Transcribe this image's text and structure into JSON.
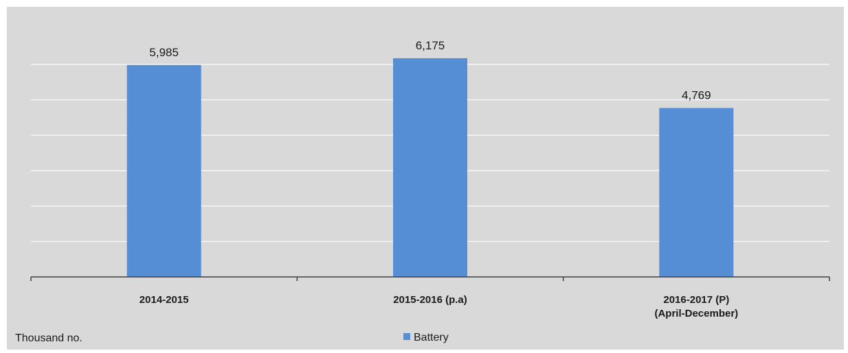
{
  "chart_data": {
    "type": "bar",
    "categories": [
      [
        "2014-2015"
      ],
      [
        "2015-2016 (p.a)"
      ],
      [
        "2016-2017 (P)",
        "(April-December)"
      ]
    ],
    "series": [
      {
        "name": "Battery",
        "values": [
          5985,
          6175,
          4769
        ],
        "labels": [
          "5,985",
          "6,175",
          "4,769"
        ],
        "color": "#558ed5"
      }
    ],
    "ylim": [
      0,
      6000
    ],
    "grid": true,
    "unit_label": "Thousand no.",
    "legend_position": "bottom-center"
  },
  "colors": {
    "background": "#d9d9d9",
    "bar": "#558ed5",
    "gridline": "#ffffff",
    "axis": "#404040"
  }
}
